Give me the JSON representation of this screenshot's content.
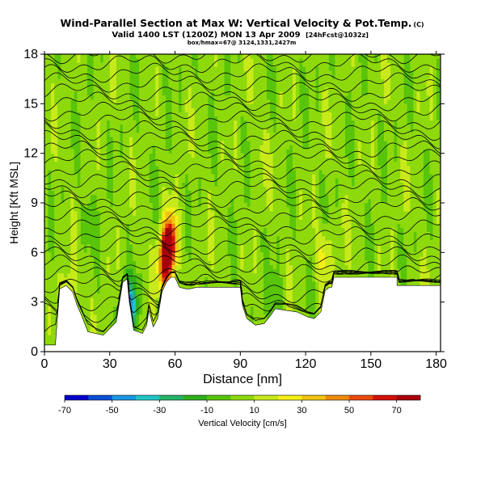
{
  "header": {
    "title": "Wind-Parallel Section at Max W: Vertical Velocity & Pot.Temp.",
    "copyright": "(C)",
    "subtitle": "Valid 1400 LST (1200Z) MON 13 Apr 2009",
    "subtitle_tag": "[24hFcst@1032z]",
    "line3": "box/hmax=67@ 3124,1331,2427m"
  },
  "colors": {
    "terrain": "#ffffff",
    "contour": "#000000",
    "scale": [
      "#0000cc",
      "#0b4fd6",
      "#1a96e3",
      "#21c4c4",
      "#25b368",
      "#2fae1c",
      "#58c40a",
      "#8ed90c",
      "#c8ea1a",
      "#f5ef18",
      "#f2c40f",
      "#ef8b0d",
      "#ea4a0a",
      "#d4100a",
      "#a8000b"
    ]
  },
  "chart_data": {
    "type": "heatmap",
    "title": "Wind-Parallel Section at Max W: Vertical Velocity & Pot.Temp.",
    "xlabel": "Distance [nm]",
    "ylabel": "Height [Kft MSL]",
    "xlim": [
      0,
      182
    ],
    "ylim": [
      0,
      18
    ],
    "xticks": [
      0,
      30,
      60,
      90,
      120,
      150,
      180
    ],
    "yticks": [
      0,
      3,
      6,
      9,
      12,
      15,
      18
    ],
    "colorbar": {
      "label": "Vertical Velocity [cm/s]",
      "min": -70,
      "max": 80,
      "tick_labels": [
        "-70",
        "-50",
        "-30",
        "-10",
        "10",
        "30",
        "50",
        "70"
      ],
      "tick_values": [
        -70,
        -50,
        -30,
        -10,
        10,
        30,
        50,
        70
      ]
    },
    "terrain": [
      [
        0,
        0.4
      ],
      [
        5,
        0.4
      ],
      [
        7,
        3.8
      ],
      [
        10,
        4.0
      ],
      [
        13,
        3.6
      ],
      [
        15,
        2.8
      ],
      [
        17,
        2.2
      ],
      [
        20,
        1.2
      ],
      [
        27,
        1.0
      ],
      [
        33,
        1.8
      ],
      [
        36,
        4.2
      ],
      [
        38,
        4.4
      ],
      [
        39,
        3.0
      ],
      [
        40,
        2.2
      ],
      [
        41,
        1.3
      ],
      [
        45,
        1.1
      ],
      [
        47,
        1.6
      ],
      [
        48,
        2.5
      ],
      [
        50,
        1.5
      ],
      [
        52,
        2.0
      ],
      [
        54,
        3.6
      ],
      [
        56,
        4.2
      ],
      [
        58,
        4.5
      ],
      [
        60,
        4.5
      ],
      [
        62,
        3.9
      ],
      [
        65,
        3.8
      ],
      [
        67,
        3.8
      ],
      [
        70,
        3.9
      ],
      [
        90,
        3.9
      ],
      [
        91,
        2.8
      ],
      [
        93,
        2.0
      ],
      [
        97,
        1.6
      ],
      [
        101,
        1.7
      ],
      [
        104,
        2.2
      ],
      [
        106,
        2.6
      ],
      [
        111,
        2.5
      ],
      [
        116,
        2.4
      ],
      [
        121,
        2.1
      ],
      [
        124,
        2.0
      ],
      [
        127,
        2.4
      ],
      [
        129,
        3.7
      ],
      [
        131,
        3.9
      ],
      [
        132,
        3.9
      ],
      [
        133,
        4.5
      ],
      [
        145,
        4.5
      ],
      [
        150,
        4.5
      ],
      [
        162,
        4.5
      ],
      [
        162,
        4.0
      ],
      [
        165,
        4.0
      ],
      [
        182,
        4.0
      ]
    ],
    "theta_contours": {
      "count": 30,
      "labeled": true
    },
    "w_features": [
      {
        "x": 57.5,
        "y": 6.6,
        "w": 78
      },
      {
        "x": 55.5,
        "y": 5.2,
        "w": 60
      },
      {
        "x": 11.0,
        "y": 3.0,
        "w": 28
      },
      {
        "x": 39.5,
        "y": 2.6,
        "w": -48
      },
      {
        "x": 128.5,
        "y": 5.8,
        "w": 22
      },
      {
        "x": 106.0,
        "y": 3.0,
        "w": -12
      },
      {
        "x": 20.0,
        "y": 8.0,
        "w": -8
      },
      {
        "x": 100.0,
        "y": 12.0,
        "w": 8
      }
    ]
  }
}
